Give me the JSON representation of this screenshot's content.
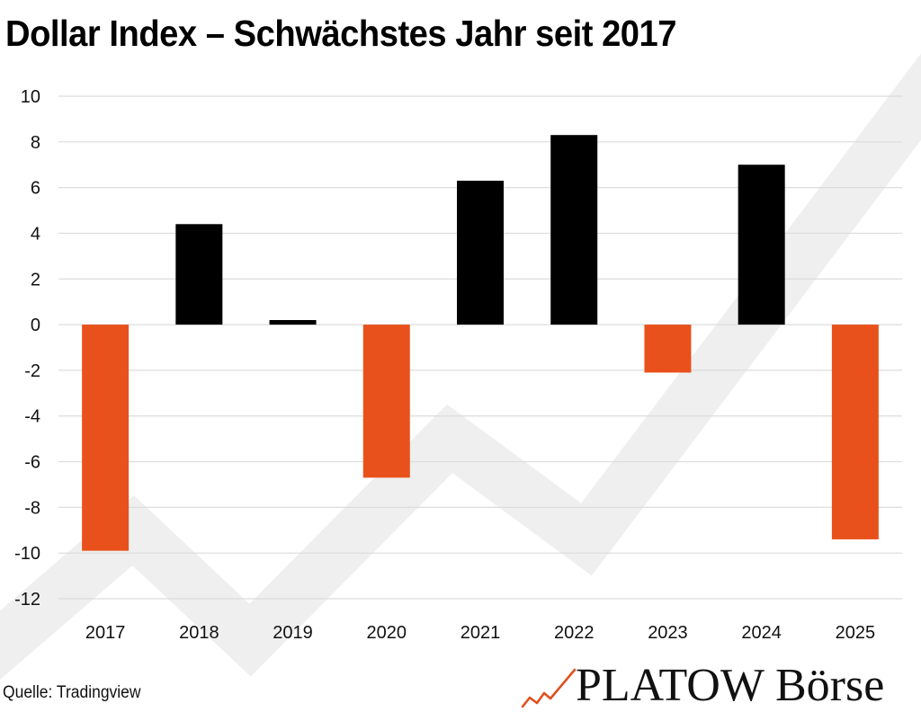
{
  "title": "Dollar Index – Schwächstes Jahr seit 2017",
  "source": "Quelle: Tradingview",
  "brand": {
    "name": "PLATOW Börse",
    "logo_icon": "rising-zigzag-arrow-icon"
  },
  "colors": {
    "positive": "#000000",
    "negative": "#E9511C",
    "grid": "#dcdcdc",
    "watermark": "#f0f0f0",
    "logo_accent": "#E0501E"
  },
  "chart_data": {
    "type": "bar",
    "title": "Dollar Index – Schwächstes Jahr seit 2017",
    "xlabel": "",
    "ylabel": "",
    "categories": [
      "2017",
      "2018",
      "2019",
      "2020",
      "2021",
      "2022",
      "2023",
      "2024",
      "2025"
    ],
    "values": [
      -9.9,
      4.4,
      0.2,
      -6.7,
      6.3,
      8.3,
      -2.1,
      7.0,
      -9.4
    ],
    "ylim": [
      -12,
      10
    ],
    "yticks": [
      10,
      8,
      6,
      4,
      2,
      0,
      -2,
      -4,
      -6,
      -8,
      -10,
      -12
    ],
    "grid": true,
    "legend": "none",
    "source": "Quelle: Tradingview"
  }
}
